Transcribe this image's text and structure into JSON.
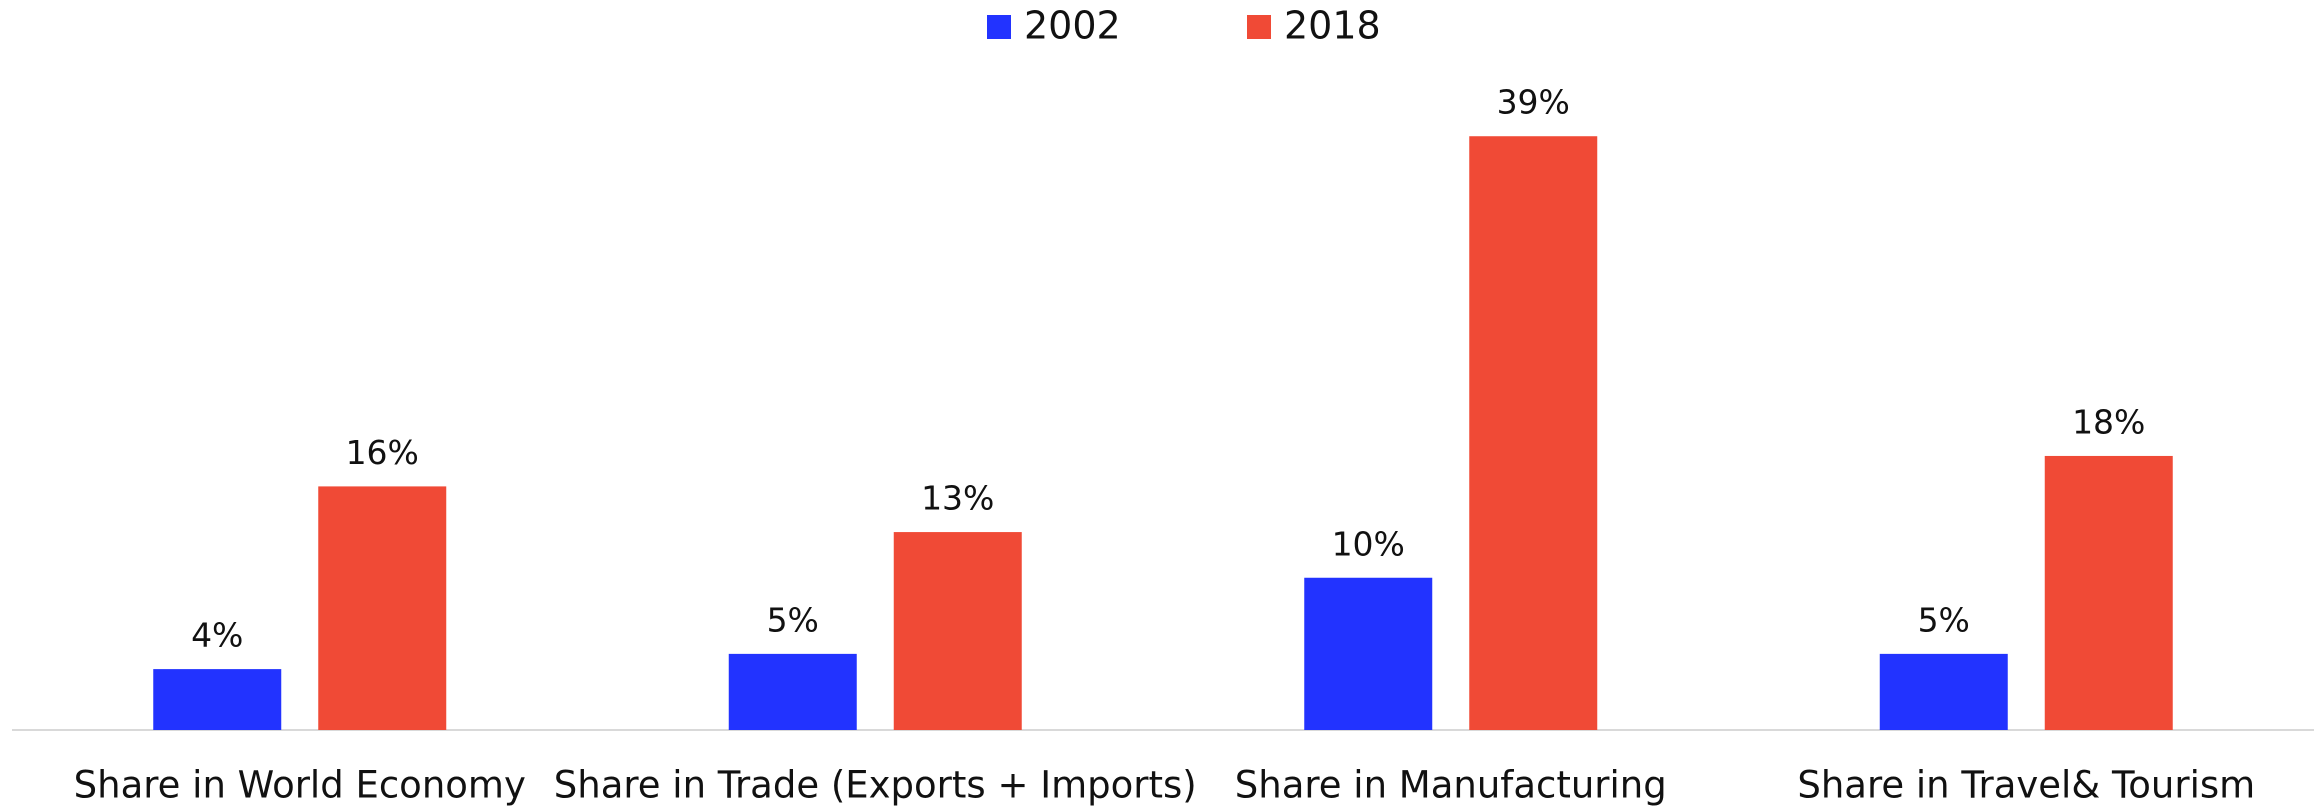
{
  "chart_data": {
    "type": "bar",
    "categories": [
      "Share in World Economy",
      "Share in Trade (Exports + Imports)",
      "Share in Manufacturing",
      "Share in Travel& Tourism"
    ],
    "series": [
      {
        "name": "2002",
        "color": "#2233ff",
        "values": [
          4,
          5,
          10,
          5
        ],
        "value_labels": [
          "4%",
          "5%",
          "10%",
          "5%"
        ]
      },
      {
        "name": "2018",
        "color": "#f04a36",
        "values": [
          16,
          13,
          39,
          18
        ],
        "value_labels": [
          "16%",
          "13%",
          "39%",
          "18%"
        ]
      }
    ],
    "ylim": [
      0,
      40
    ],
    "legend": "top"
  }
}
